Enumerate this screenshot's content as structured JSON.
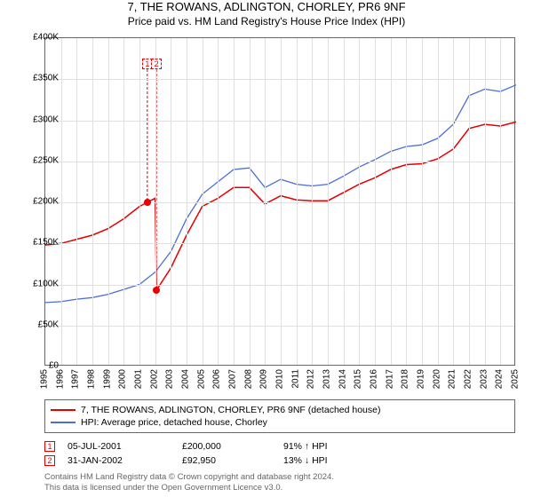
{
  "title": "7, THE ROWANS, ADLINGTON, CHORLEY, PR6 9NF",
  "subtitle": "Price paid vs. HM Land Registry's House Price Index (HPI)",
  "chart": {
    "type": "line",
    "background_color": "#ffffff",
    "grid_color": "#e0e0e0",
    "border_color": "#666666",
    "ylim": [
      0,
      400000
    ],
    "ytick_step": 50000,
    "yticks": [
      "£0",
      "£50K",
      "£100K",
      "£150K",
      "£200K",
      "£250K",
      "£300K",
      "£350K",
      "£400K"
    ],
    "xlim": [
      1995,
      2025
    ],
    "xticks": [
      1995,
      1996,
      1997,
      1998,
      1999,
      2000,
      2001,
      2002,
      2003,
      2004,
      2005,
      2006,
      2007,
      2008,
      2009,
      2010,
      2011,
      2012,
      2013,
      2014,
      2015,
      2016,
      2017,
      2018,
      2019,
      2020,
      2021,
      2022,
      2023,
      2024,
      2025
    ],
    "series": [
      {
        "name": "7, THE ROWANS, ADLINGTON, CHORLEY, PR6 9NF (detached house)",
        "color": "#e60000",
        "line_width": 1.5,
        "data": [
          [
            1995,
            148000
          ],
          [
            1996,
            150000
          ],
          [
            1997,
            155000
          ],
          [
            1998,
            160000
          ],
          [
            1999,
            168000
          ],
          [
            2000,
            180000
          ],
          [
            2001,
            195000
          ],
          [
            2001.5,
            200000
          ],
          [
            2002,
            205000
          ],
          [
            2002.08,
            92950
          ],
          [
            2003,
            120000
          ],
          [
            2004,
            160000
          ],
          [
            2005,
            195000
          ],
          [
            2006,
            205000
          ],
          [
            2007,
            218000
          ],
          [
            2008,
            218000
          ],
          [
            2009,
            198000
          ],
          [
            2010,
            208000
          ],
          [
            2011,
            203000
          ],
          [
            2012,
            202000
          ],
          [
            2013,
            202000
          ],
          [
            2014,
            212000
          ],
          [
            2015,
            222000
          ],
          [
            2016,
            230000
          ],
          [
            2017,
            240000
          ],
          [
            2018,
            246000
          ],
          [
            2019,
            247000
          ],
          [
            2020,
            253000
          ],
          [
            2021,
            265000
          ],
          [
            2022,
            290000
          ],
          [
            2023,
            295000
          ],
          [
            2024,
            293000
          ],
          [
            2025,
            298000
          ]
        ]
      },
      {
        "name": "HPI: Average price, detached house, Chorley",
        "color": "#4a6fd6",
        "line_width": 1.3,
        "data": [
          [
            1995,
            78000
          ],
          [
            1996,
            79000
          ],
          [
            1997,
            82000
          ],
          [
            1998,
            84000
          ],
          [
            1999,
            88000
          ],
          [
            2000,
            94000
          ],
          [
            2001,
            100000
          ],
          [
            2002,
            115000
          ],
          [
            2003,
            140000
          ],
          [
            2004,
            180000
          ],
          [
            2005,
            210000
          ],
          [
            2006,
            225000
          ],
          [
            2007,
            240000
          ],
          [
            2008,
            242000
          ],
          [
            2009,
            218000
          ],
          [
            2010,
            228000
          ],
          [
            2011,
            222000
          ],
          [
            2012,
            220000
          ],
          [
            2013,
            222000
          ],
          [
            2014,
            232000
          ],
          [
            2015,
            243000
          ],
          [
            2016,
            252000
          ],
          [
            2017,
            262000
          ],
          [
            2018,
            268000
          ],
          [
            2019,
            270000
          ],
          [
            2020,
            278000
          ],
          [
            2021,
            295000
          ],
          [
            2022,
            330000
          ],
          [
            2023,
            338000
          ],
          [
            2024,
            335000
          ],
          [
            2025,
            343000
          ]
        ]
      }
    ],
    "markers": [
      {
        "index": "1",
        "x": 2001.5,
        "y": 200000,
        "color": "#e60000",
        "box_top": 65
      },
      {
        "index": "2",
        "x": 2002.08,
        "y": 92950,
        "color": "#e60000",
        "box_top": 65
      }
    ]
  },
  "legend": {
    "items": [
      {
        "color": "#e60000",
        "label": "7, THE ROWANS, ADLINGTON, CHORLEY, PR6 9NF (detached house)"
      },
      {
        "color": "#4a6fd6",
        "label": "HPI: Average price, detached house, Chorley"
      }
    ]
  },
  "transactions": [
    {
      "index": "1",
      "color": "#e60000",
      "date": "05-JUL-2001",
      "price": "£200,000",
      "pct": "91% ↑ HPI"
    },
    {
      "index": "2",
      "color": "#e60000",
      "date": "31-JAN-2002",
      "price": "£92,950",
      "pct": "13% ↓ HPI"
    }
  ],
  "footer": {
    "line1": "Contains HM Land Registry data © Crown copyright and database right 2024.",
    "line2": "This data is licensed under the Open Government Licence v3.0."
  }
}
